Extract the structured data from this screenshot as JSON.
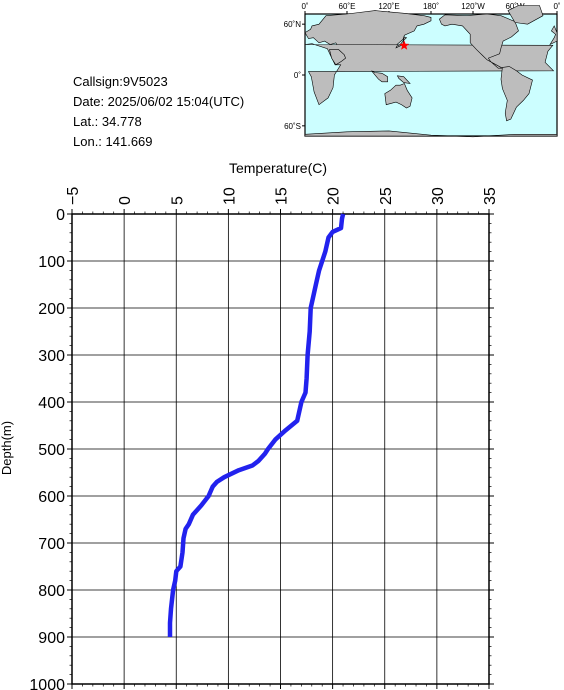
{
  "info": {
    "callsign": "Callsign:9V5023",
    "date": "Date:  2025/06/02 15:04(UTC)",
    "lat": "Lat.:  34.778",
    "lon": "Lon.:  141.669"
  },
  "map": {
    "top_labels": [
      "0˚",
      "60˚E",
      "120˚E",
      "180˚",
      "120˚W",
      "60˚W",
      "0˚"
    ],
    "left_labels": [
      "60˚N",
      "0˚",
      "60˚S"
    ],
    "ocean_color": "#ccfeff",
    "land_color": "#bdbdbd",
    "marker": {
      "lat": 34.778,
      "lon": 141.669,
      "color": "#ff0000",
      "icon": "star-icon"
    }
  },
  "chart_data": {
    "type": "line",
    "xlabel": "Temperature(C)",
    "ylabel": "Depth(m)",
    "xlim": [
      -5,
      35
    ],
    "ylim": [
      0,
      1000
    ],
    "x_ticks": [
      -5,
      0,
      5,
      10,
      15,
      20,
      25,
      30,
      35
    ],
    "y_ticks": [
      0,
      100,
      200,
      300,
      400,
      500,
      600,
      700,
      800,
      900,
      1000
    ],
    "grid": true,
    "line_color": "#2222ee",
    "series": [
      {
        "name": "",
        "points": [
          [
            21.0,
            0
          ],
          [
            20.9,
            10
          ],
          [
            20.8,
            30
          ],
          [
            20.0,
            38
          ],
          [
            19.6,
            50
          ],
          [
            19.3,
            80
          ],
          [
            19.0,
            100
          ],
          [
            18.7,
            120
          ],
          [
            18.4,
            150
          ],
          [
            18.1,
            180
          ],
          [
            17.9,
            200
          ],
          [
            17.8,
            250
          ],
          [
            17.6,
            300
          ],
          [
            17.5,
            350
          ],
          [
            17.4,
            380
          ],
          [
            17.0,
            400
          ],
          [
            16.6,
            440
          ],
          [
            15.5,
            460
          ],
          [
            14.5,
            480
          ],
          [
            13.8,
            500
          ],
          [
            13.5,
            510
          ],
          [
            12.9,
            525
          ],
          [
            12.3,
            535
          ],
          [
            11.0,
            545
          ],
          [
            9.6,
            560
          ],
          [
            8.9,
            570
          ],
          [
            8.5,
            580
          ],
          [
            8.1,
            600
          ],
          [
            7.4,
            620
          ],
          [
            6.6,
            640
          ],
          [
            6.2,
            660
          ],
          [
            5.9,
            670
          ],
          [
            5.7,
            690
          ],
          [
            5.6,
            720
          ],
          [
            5.4,
            750
          ],
          [
            5.0,
            760
          ],
          [
            4.9,
            780
          ],
          [
            4.7,
            800
          ],
          [
            4.5,
            840
          ],
          [
            4.4,
            870
          ],
          [
            4.4,
            900
          ]
        ]
      }
    ]
  }
}
